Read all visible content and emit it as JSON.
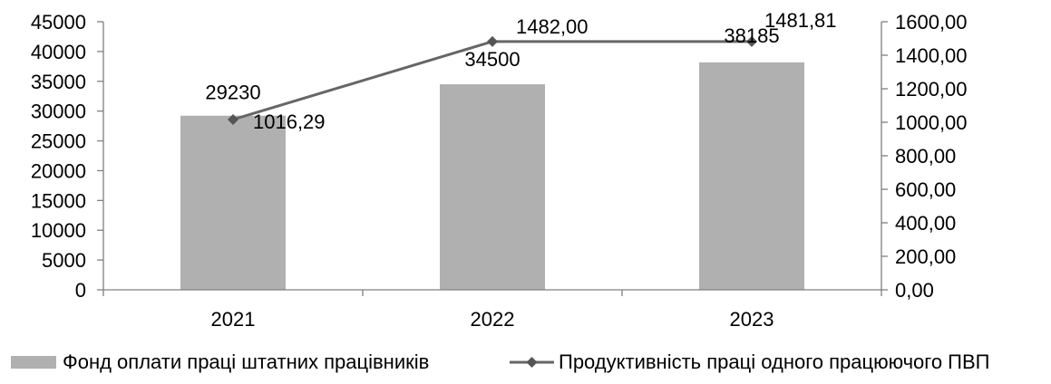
{
  "chart_data": {
    "type": "bar",
    "categories": [
      "2021",
      "2022",
      "2023"
    ],
    "series": [
      {
        "name": "Фонд оплати праці штатних працівників",
        "type": "bar",
        "axis": "left",
        "values": [
          29230,
          34500,
          38185
        ],
        "data_labels": [
          "29230",
          "34500",
          "38185"
        ],
        "color": "#b0b0b0"
      },
      {
        "name": "Продуктивність праці одного працюючого ПВП",
        "type": "line",
        "axis": "right",
        "values": [
          1016.29,
          1482.0,
          1481.81
        ],
        "data_labels": [
          "1016,29",
          "1482,00",
          "1481,81"
        ],
        "color": "#666666"
      }
    ],
    "y_left": {
      "ylim": [
        0,
        45000
      ],
      "ticks": [
        "0",
        "5000",
        "10000",
        "15000",
        "20000",
        "25000",
        "30000",
        "35000",
        "40000",
        "45000"
      ]
    },
    "y_right": {
      "ylim": [
        0,
        1600
      ],
      "ticks": [
        "0,00",
        "200,00",
        "400,00",
        "600,00",
        "800,00",
        "1000,00",
        "1200,00",
        "1400,00",
        "1600,00"
      ]
    },
    "grid": false,
    "legend_position": "bottom"
  }
}
